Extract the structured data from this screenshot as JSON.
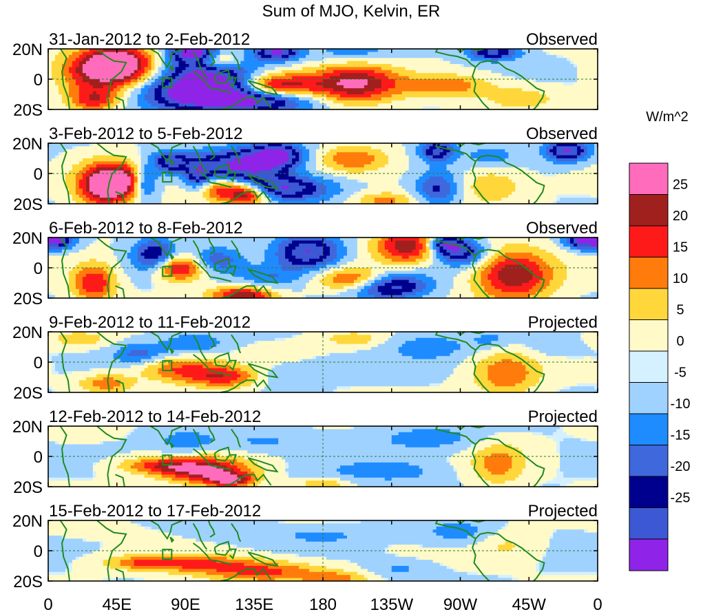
{
  "chart_data": {
    "type": "heatmap",
    "title": "Sum of MJO, Kelvin, ER",
    "colorbar": {
      "units": "W/m^2",
      "colors": [
        "#8f24e8",
        "#3c58d4",
        "#00008e",
        "#3f68dc",
        "#1e8cff",
        "#a0d2ff",
        "#d5f0ff",
        "#fffac8",
        "#ffd73a",
        "#ff7c0c",
        "#ff1a1a",
        "#a0201e",
        "#ff6cbc"
      ],
      "tick_labels": [
        "25",
        "20",
        "15",
        "10",
        "5",
        "0",
        "-5",
        "-10",
        "-15",
        "-20",
        "-25"
      ]
    },
    "lat_labels": [
      "20N",
      "0",
      "20S"
    ],
    "lon_labels": [
      "0",
      "45E",
      "90E",
      "135E",
      "180",
      "135W",
      "90W",
      "45W",
      "0"
    ],
    "panels": [
      {
        "period": "31-Jan-2012 to 2-Feb-2012",
        "type": "Observed",
        "blobs": [
          [
            35,
            10,
            18,
            9,
            20
          ],
          [
            50,
            10,
            15,
            10,
            20
          ],
          [
            30,
            -14,
            12,
            6,
            18
          ],
          [
            112,
            12,
            10,
            5,
            22
          ],
          [
            150,
            -5,
            18,
            6,
            28
          ],
          [
            200,
            -3,
            20,
            9,
            26
          ],
          [
            95,
            -10,
            25,
            8,
            -26
          ],
          [
            105,
            5,
            20,
            10,
            -26
          ],
          [
            140,
            -14,
            25,
            6,
            -26
          ],
          [
            95,
            18,
            10,
            4,
            -26
          ],
          [
            150,
            18,
            10,
            4,
            -26
          ],
          [
            292,
            18,
            12,
            4,
            -22
          ],
          [
            260,
            -4,
            20,
            5,
            14
          ],
          [
            310,
            -12,
            20,
            6,
            8
          ],
          [
            198,
            18,
            20,
            5,
            -8
          ],
          [
            28,
            0,
            15,
            8,
            8
          ]
        ]
      },
      {
        "period": "3-Feb-2012 to 5-Feb-2012",
        "type": "Observed",
        "blobs": [
          [
            35,
            -8,
            12,
            10,
            26
          ],
          [
            50,
            -5,
            12,
            8,
            24
          ],
          [
            115,
            -10,
            15,
            6,
            26
          ],
          [
            132,
            -14,
            10,
            5,
            24
          ],
          [
            80,
            8,
            8,
            5,
            -22
          ],
          [
            63,
            -6,
            6,
            8,
            -22
          ],
          [
            98,
            -2,
            6,
            8,
            -18
          ],
          [
            125,
            5,
            20,
            8,
            -26
          ],
          [
            150,
            -10,
            25,
            6,
            -26
          ],
          [
            150,
            12,
            12,
            6,
            -26
          ],
          [
            200,
            10,
            15,
            6,
            14
          ],
          [
            255,
            15,
            8,
            5,
            -22
          ],
          [
            255,
            -10,
            10,
            8,
            -16
          ],
          [
            290,
            -8,
            15,
            8,
            10
          ],
          [
            340,
            15,
            10,
            5,
            -26
          ],
          [
            290,
            12,
            12,
            5,
            -8
          ],
          [
            220,
            -18,
            15,
            4,
            12
          ]
        ]
      },
      {
        "period": "6-Feb-2012 to 8-Feb-2012",
        "type": "Observed",
        "blobs": [
          [
            30,
            -10,
            10,
            9,
            20
          ],
          [
            85,
            0,
            12,
            6,
            26
          ],
          [
            128,
            -18,
            15,
            4,
            24
          ],
          [
            70,
            8,
            10,
            8,
            -22
          ],
          [
            170,
            10,
            15,
            8,
            -26
          ],
          [
            198,
            -8,
            15,
            6,
            16
          ],
          [
            235,
            14,
            15,
            8,
            24
          ],
          [
            305,
            -5,
            18,
            12,
            24
          ],
          [
            350,
            18,
            8,
            4,
            -26
          ],
          [
            5,
            18,
            8,
            4,
            -26
          ],
          [
            230,
            -12,
            15,
            6,
            -18
          ],
          [
            270,
            10,
            12,
            6,
            -22
          ],
          [
            210,
            -15,
            15,
            5,
            -10
          ],
          [
            110,
            5,
            12,
            6,
            -14
          ],
          [
            145,
            -6,
            15,
            6,
            -10
          ],
          [
            260,
            16,
            8,
            4,
            -22
          ]
        ]
      },
      {
        "period": "9-Feb-2012 to 11-Feb-2012",
        "type": "Projected",
        "blobs": [
          [
            85,
            -4,
            20,
            6,
            14
          ],
          [
            118,
            -10,
            20,
            5,
            18
          ],
          [
            38,
            -14,
            12,
            4,
            14
          ],
          [
            300,
            -8,
            15,
            10,
            14
          ],
          [
            95,
            12,
            15,
            5,
            -10
          ],
          [
            60,
            5,
            12,
            5,
            -12
          ],
          [
            145,
            -10,
            15,
            5,
            -8
          ],
          [
            200,
            15,
            15,
            4,
            8
          ],
          [
            250,
            10,
            20,
            6,
            -8
          ],
          [
            20,
            15,
            15,
            4,
            8
          ],
          [
            200,
            -5,
            30,
            4,
            -4
          ],
          [
            330,
            10,
            15,
            5,
            -4
          ],
          [
            290,
            15,
            10,
            4,
            -6
          ]
        ]
      },
      {
        "period": "12-Feb-2012 to 14-Feb-2012",
        "type": "Projected",
        "blobs": [
          [
            75,
            -6,
            20,
            4,
            16
          ],
          [
            105,
            -10,
            20,
            6,
            24
          ],
          [
            120,
            -16,
            10,
            3,
            20
          ],
          [
            295,
            -5,
            12,
            10,
            12
          ],
          [
            180,
            -18,
            10,
            3,
            10
          ],
          [
            90,
            10,
            15,
            6,
            -8
          ],
          [
            140,
            10,
            20,
            5,
            -6
          ],
          [
            250,
            12,
            25,
            6,
            -8
          ],
          [
            230,
            -10,
            20,
            5,
            -6
          ],
          [
            20,
            15,
            15,
            4,
            4
          ],
          [
            200,
            -10,
            25,
            5,
            -4
          ]
        ]
      },
      {
        "period": "15-Feb-2012 to 17-Feb-2012",
        "type": "Projected",
        "blobs": [
          [
            90,
            -8,
            30,
            4,
            14
          ],
          [
            140,
            -14,
            30,
            5,
            16
          ],
          [
            190,
            -18,
            15,
            3,
            10
          ],
          [
            60,
            -8,
            15,
            3,
            8
          ],
          [
            270,
            12,
            20,
            6,
            -8
          ],
          [
            180,
            10,
            20,
            4,
            -6
          ],
          [
            120,
            12,
            20,
            4,
            -4
          ],
          [
            300,
            5,
            15,
            8,
            6
          ],
          [
            230,
            -12,
            15,
            4,
            -6
          ],
          [
            25,
            15,
            15,
            4,
            4
          ]
        ]
      }
    ]
  }
}
